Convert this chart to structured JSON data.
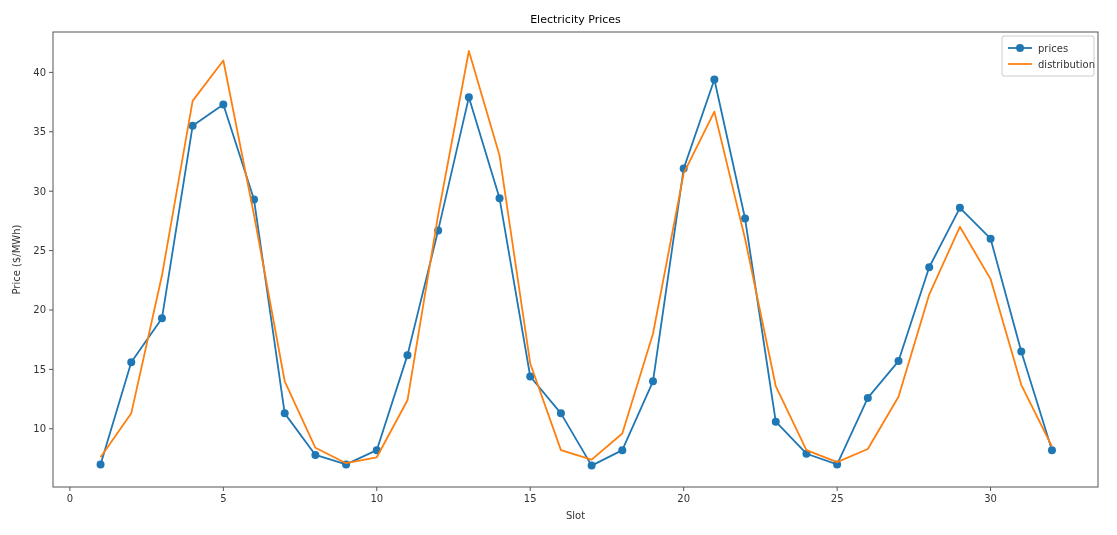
{
  "chart_data": {
    "type": "line",
    "title": "Electricity Prices",
    "xlabel": "Slot",
    "ylabel": "Price ($/MWh)",
    "x": [
      1,
      2,
      3,
      4,
      5,
      6,
      7,
      8,
      9,
      10,
      11,
      12,
      13,
      14,
      15,
      16,
      17,
      18,
      19,
      20,
      21,
      22,
      23,
      24,
      25,
      26,
      27,
      28,
      29,
      30,
      31,
      32
    ],
    "series": [
      {
        "name": "prices",
        "color": "#1f77b4",
        "marker": "circle",
        "values": [
          7.0,
          15.6,
          19.3,
          35.5,
          37.3,
          29.3,
          11.3,
          7.8,
          7.0,
          8.2,
          16.2,
          26.7,
          37.9,
          29.4,
          14.4,
          11.3,
          6.9,
          8.2,
          14.0,
          31.9,
          39.4,
          27.7,
          10.6,
          7.9,
          7.0,
          12.6,
          15.7,
          23.6,
          28.6,
          26.0,
          16.5,
          8.2
        ]
      },
      {
        "name": "distribution",
        "color": "#ff7f0e",
        "marker": "none",
        "values": [
          7.6,
          11.3,
          22.9,
          37.6,
          41.0,
          28.0,
          14.0,
          8.4,
          7.1,
          7.6,
          12.4,
          28.0,
          41.8,
          33.0,
          15.5,
          8.2,
          7.4,
          9.6,
          18.0,
          31.5,
          36.7,
          26.0,
          13.6,
          8.2,
          7.2,
          8.3,
          12.7,
          21.3,
          27.0,
          22.6,
          13.7,
          8.5
        ]
      }
    ],
    "xlim": [
      -0.55,
      33.5
    ],
    "xticks": [
      0,
      5,
      10,
      15,
      20,
      25,
      30
    ],
    "ylim": [
      5.1,
      43.4
    ],
    "yticks": [
      10,
      15,
      20,
      25,
      30,
      35,
      40
    ],
    "grid": false,
    "legend": "top right",
    "line_style": "solid"
  }
}
